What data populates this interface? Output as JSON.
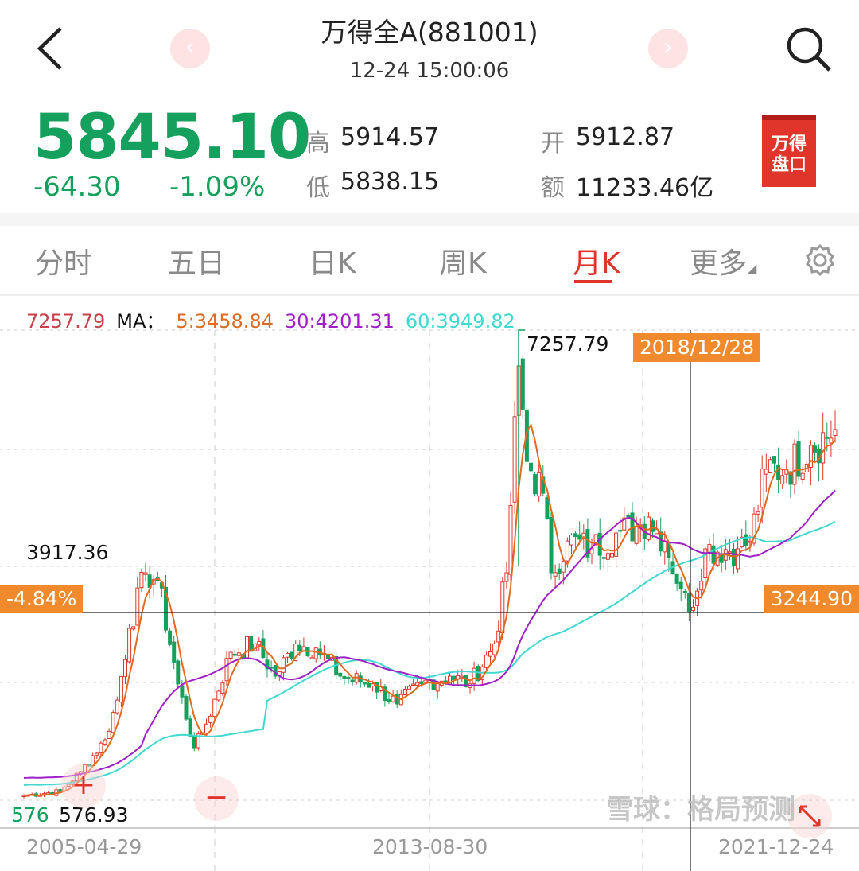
{
  "header": {
    "title": "万得全A(881001)",
    "time": "12-24 15:00:06",
    "back_icon": "chevron-left-icon",
    "prev_icon": "chevron-left-icon",
    "next_icon": "chevron-right-icon",
    "search_icon": "search-icon"
  },
  "quote": {
    "price": "5845.10",
    "change": "-64.30",
    "change_pct": "-1.09%",
    "high_label": "高",
    "high": "5914.57",
    "low_label": "低",
    "low": "5838.15",
    "open_label": "开",
    "open": "5912.87",
    "amount_label": "额",
    "amount": "11233.46亿",
    "color": "#16a05d"
  },
  "badge": {
    "line1": "万得",
    "line2": "盘口"
  },
  "tabs": [
    {
      "label": "分时"
    },
    {
      "label": "五日"
    },
    {
      "label": "日K"
    },
    {
      "label": "周K"
    },
    {
      "label": "月K",
      "active": true
    },
    {
      "label": "更多"
    }
  ],
  "settings_icon": "gear-icon",
  "legend": {
    "price": "7257.79",
    "ma_label": "MA：",
    "ma5": "5:3458.84",
    "ma30": "30:4201.31",
    "ma60": "60:3949.82"
  },
  "colors": {
    "up": "#e0352b",
    "down": "#16a05d",
    "ma5": "#e06a20",
    "ma30": "#a020c8",
    "ma60": "#40d8d0",
    "accent": "#f08a2c"
  },
  "chart_data": {
    "type": "candlestick",
    "interval": "monthly",
    "ylim": [
      576.93,
      7257.79
    ],
    "high_marker": "7257.79",
    "left_marker": "3917.36",
    "low_marker": "576.93",
    "low_marker_partial": "576",
    "crosshair": {
      "date": "2018/12/28",
      "value": "3244.90",
      "pct": "-4.84%"
    },
    "x_labels": [
      "2005-04-29",
      "2013-08-30",
      "2021-12-24"
    ],
    "closes": [
      [
        "2005-04",
        645
      ],
      [
        "2006-01",
        700
      ],
      [
        "2006-06",
        985
      ],
      [
        "2006-12",
        1436
      ],
      [
        "2007-03",
        2000
      ],
      [
        "2007-06",
        3019
      ],
      [
        "2007-10",
        3810
      ],
      [
        "2008-01",
        3700
      ],
      [
        "2008-06",
        2230
      ],
      [
        "2008-10",
        1323
      ],
      [
        "2009-01",
        1660
      ],
      [
        "2009-07",
        2680
      ],
      [
        "2010-01",
        2800
      ],
      [
        "2010-06",
        2340
      ],
      [
        "2010-11",
        2800
      ],
      [
        "2011-04",
        2740
      ],
      [
        "2011-10",
        2340
      ],
      [
        "2012-06",
        2230
      ],
      [
        "2012-12",
        1945
      ],
      [
        "2013-06",
        2230
      ],
      [
        "2014-01",
        2340
      ],
      [
        "2014-06",
        2230
      ],
      [
        "2014-12",
        2800
      ],
      [
        "2015-03",
        3810
      ],
      [
        "2015-06",
        6750
      ],
      [
        "2015-08",
        5390
      ],
      [
        "2015-12",
        4940
      ],
      [
        "2016-02",
        3810
      ],
      [
        "2016-06",
        4260
      ],
      [
        "2016-12",
        4150
      ],
      [
        "2017-06",
        4375
      ],
      [
        "2017-12",
        4490
      ],
      [
        "2018-02",
        4600
      ],
      [
        "2018-06",
        4260
      ],
      [
        "2018-10",
        3580
      ],
      [
        "2018-12",
        3245
      ],
      [
        "2019-04",
        4150
      ],
      [
        "2019-12",
        4150
      ],
      [
        "2020-03",
        4260
      ],
      [
        "2020-07",
        5280
      ],
      [
        "2020-12",
        5280
      ],
      [
        "2021-06",
        5620
      ],
      [
        "2021-12",
        5845
      ]
    ]
  },
  "zoom": {
    "in": "+",
    "out": "−",
    "expand_icon": "expand-icon"
  },
  "watermark": "雪球：格局预测"
}
